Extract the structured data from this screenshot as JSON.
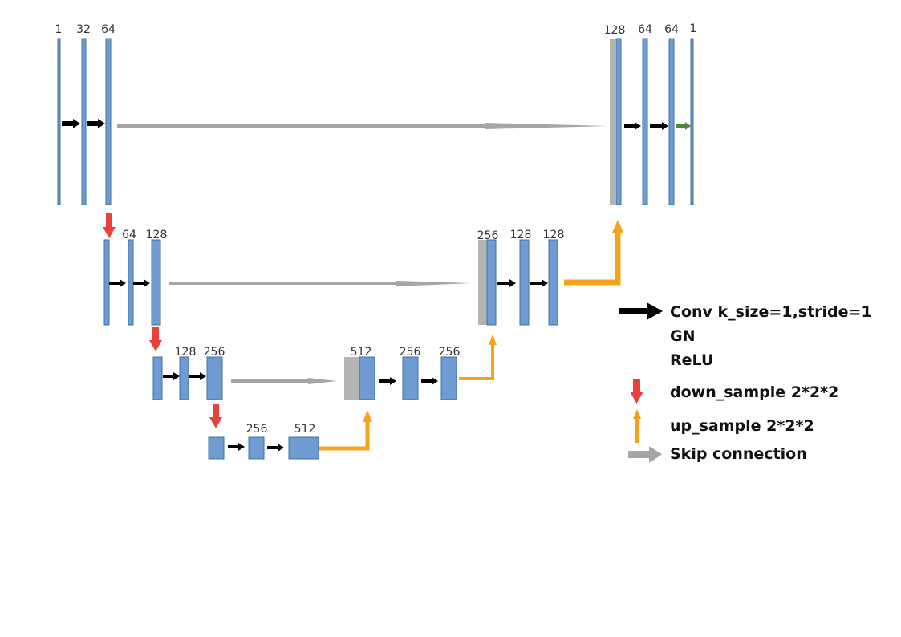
{
  "colors": {
    "block": "#6E9BD1",
    "block_edge": "#41719C",
    "concat": "#B4B4B4",
    "conv_arrow": "#000000",
    "down_arrow": "#E8413C",
    "up_arrow": "#F5A21D",
    "skip_arrow": "#A6A6A6",
    "final_arrow": "#4E8A3A"
  },
  "level1": {
    "ch_1": "1",
    "ch_32": "32",
    "ch_64": "64",
    "ch_128_right": "128",
    "ch_64_r1": "64",
    "ch_64_r2": "64",
    "ch_out": "1"
  },
  "level2": {
    "ch_64": "64",
    "ch_128": "128",
    "ch_256_right": "256",
    "ch_128_r1": "128",
    "ch_128_r2": "128"
  },
  "level3": {
    "ch_128": "128",
    "ch_256": "256",
    "ch_512_right": "512",
    "ch_256_r1": "256",
    "ch_256_r2": "256"
  },
  "level4": {
    "ch_256": "256",
    "ch_512": "512"
  },
  "legend": {
    "conv": "Conv k_size=1,stride=1",
    "gn": "GN",
    "relu": "ReLU",
    "down": "down_sample 2*2*2",
    "up": "up_sample 2*2*2",
    "skip": "Skip connection"
  }
}
